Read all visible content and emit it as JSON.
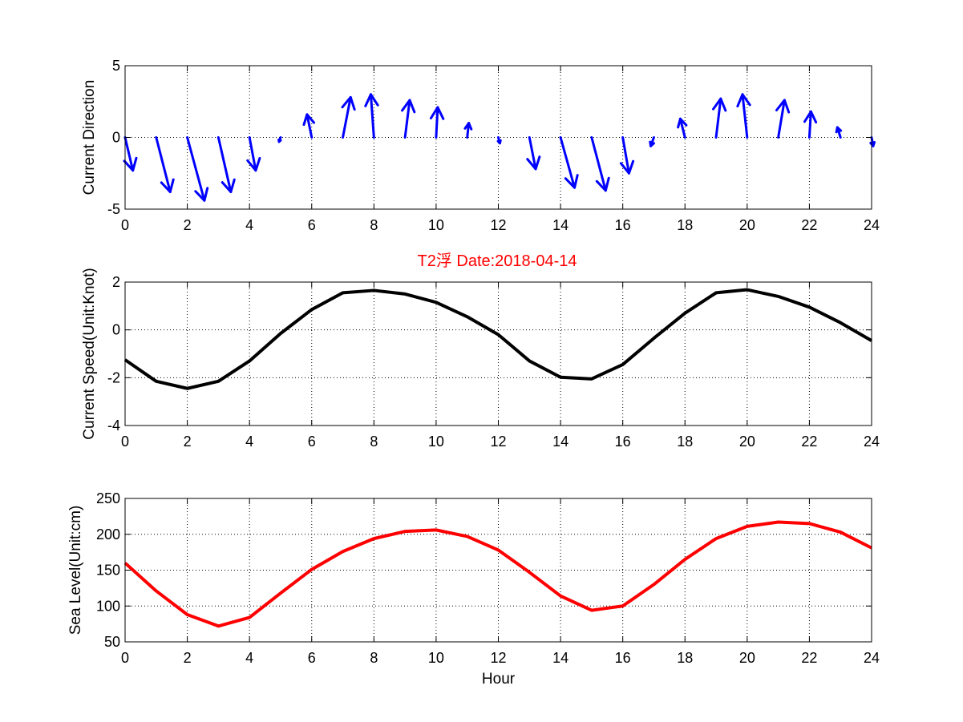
{
  "title": "T2浮    Date:2018-04-14",
  "title_color": "#ff0000",
  "chart_data": [
    {
      "type": "quiver",
      "ylabel": "Current Direction",
      "xlabel": "",
      "xlim": [
        0,
        24
      ],
      "ylim": [
        -5,
        5
      ],
      "xticks": [
        "0",
        "2",
        "4",
        "6",
        "8",
        "10",
        "12",
        "14",
        "16",
        "18",
        "20",
        "22",
        "24"
      ],
      "yticks": [
        "5",
        "0",
        "-5"
      ],
      "grid": true,
      "color": "#0000ff",
      "x": [
        0,
        1,
        2,
        3,
        4,
        5,
        6,
        7,
        8,
        9,
        10,
        11,
        12,
        13,
        14,
        15,
        16,
        17,
        18,
        19,
        20,
        21,
        22,
        23,
        24
      ],
      "u": [
        0.25,
        0.45,
        0.55,
        0.4,
        0.2,
        -0.05,
        -0.15,
        0.25,
        -0.1,
        0.15,
        0.05,
        0.05,
        0.05,
        0.2,
        0.45,
        0.45,
        0.2,
        -0.1,
        -0.15,
        0.15,
        -0.15,
        0.2,
        0.05,
        -0.1,
        0.05
      ],
      "v": [
        -2.3,
        -3.8,
        -4.4,
        -3.8,
        -2.3,
        -0.3,
        1.6,
        2.8,
        3.0,
        2.6,
        2.1,
        1.0,
        -0.4,
        -2.2,
        -3.5,
        -3.7,
        -2.5,
        -0.6,
        1.3,
        2.7,
        3.0,
        2.6,
        1.8,
        0.7,
        -0.6
      ]
    },
    {
      "type": "line",
      "ylabel": "Current Speed(Unit:Knot)",
      "xlabel": "",
      "xlim": [
        0,
        24
      ],
      "ylim": [
        -4,
        2
      ],
      "xticks": [
        "0",
        "2",
        "4",
        "6",
        "8",
        "10",
        "12",
        "14",
        "16",
        "18",
        "20",
        "22",
        "24"
      ],
      "yticks": [
        "2",
        "0",
        "-2",
        "-4"
      ],
      "grid": true,
      "color": "#000000",
      "x": [
        0,
        1,
        2,
        3,
        4,
        5,
        6,
        7,
        8,
        9,
        10,
        11,
        12,
        13,
        14,
        15,
        16,
        17,
        18,
        19,
        20,
        21,
        22,
        23,
        24
      ],
      "y": [
        -1.25,
        -2.15,
        -2.45,
        -2.15,
        -1.3,
        -0.15,
        0.85,
        1.55,
        1.65,
        1.5,
        1.15,
        0.55,
        -0.2,
        -1.3,
        -1.98,
        -2.05,
        -1.45,
        -0.35,
        0.7,
        1.55,
        1.68,
        1.4,
        0.95,
        0.3,
        -0.45
      ]
    },
    {
      "type": "line",
      "ylabel": "Sea Level(Unit:cm)",
      "xlabel": "Hour",
      "xlim": [
        0,
        24
      ],
      "ylim": [
        50,
        250
      ],
      "xticks": [
        "0",
        "2",
        "4",
        "6",
        "8",
        "10",
        "12",
        "14",
        "16",
        "18",
        "20",
        "22",
        "24"
      ],
      "yticks": [
        "250",
        "200",
        "150",
        "100",
        "50"
      ],
      "grid": true,
      "color": "#ff0000",
      "x": [
        0,
        1,
        2,
        3,
        4,
        5,
        6,
        7,
        8,
        9,
        10,
        11,
        12,
        13,
        14,
        15,
        16,
        17,
        18,
        19,
        20,
        21,
        22,
        23,
        24
      ],
      "y": [
        160,
        121,
        88,
        72,
        84,
        118,
        151,
        176,
        194,
        204,
        206,
        197,
        178,
        147,
        114,
        94,
        100,
        130,
        165,
        194,
        211,
        217,
        215,
        203,
        181
      ]
    }
  ]
}
